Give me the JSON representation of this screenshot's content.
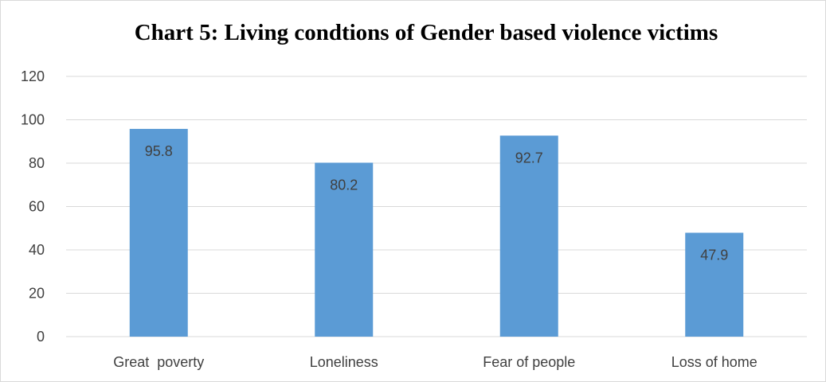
{
  "chart_data": {
    "type": "bar",
    "title": "Chart 5: Living condtions of Gender based violence victims",
    "categories": [
      "Great  poverty",
      "Loneliness",
      "Fear of people",
      "Loss of home"
    ],
    "values": [
      95.8,
      80.2,
      92.7,
      47.9
    ],
    "data_labels": [
      "95.8",
      "80.2",
      "92.7",
      "47.9"
    ],
    "y_ticks": [
      "0",
      "20",
      "40",
      "60",
      "80",
      "100",
      "120"
    ],
    "ylim": [
      0,
      120
    ],
    "xlabel": "",
    "ylabel": "",
    "grid": true,
    "legend": "none",
    "bar_color": "#5b9bd5",
    "gridline_color": "#d9d9d9",
    "label_color": "#404040"
  }
}
